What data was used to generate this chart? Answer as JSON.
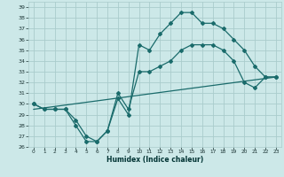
{
  "title": "",
  "xlabel": "Humidex (Indice chaleur)",
  "bg_color": "#cce8e8",
  "grid_color": "#aacccc",
  "line_color": "#1a6b6b",
  "xlim": [
    -0.5,
    23.5
  ],
  "ylim": [
    26,
    39.5
  ],
  "xticks": [
    0,
    1,
    2,
    3,
    4,
    5,
    6,
    7,
    8,
    9,
    10,
    11,
    12,
    13,
    14,
    15,
    16,
    17,
    18,
    19,
    20,
    21,
    22,
    23
  ],
  "yticks": [
    26,
    27,
    28,
    29,
    30,
    31,
    32,
    33,
    34,
    35,
    36,
    37,
    38,
    39
  ],
  "curve1_x": [
    0,
    1,
    2,
    3,
    4,
    5,
    6,
    7,
    8,
    9,
    10,
    11,
    12,
    13,
    14,
    15,
    16,
    17,
    18,
    19,
    20,
    21,
    22,
    23
  ],
  "curve1_y": [
    30.0,
    29.5,
    29.5,
    29.5,
    28.0,
    26.5,
    26.5,
    27.5,
    30.5,
    29.0,
    35.5,
    35.0,
    36.5,
    37.5,
    38.5,
    38.5,
    37.5,
    37.5,
    37.0,
    36.0,
    35.0,
    33.5,
    32.5,
    32.5
  ],
  "curve2_x": [
    0,
    1,
    2,
    3,
    4,
    5,
    6,
    7,
    8,
    9,
    10,
    11,
    12,
    13,
    14,
    15,
    16,
    17,
    18,
    19,
    20,
    21,
    22,
    23
  ],
  "curve2_y": [
    30.0,
    29.5,
    29.5,
    29.5,
    28.5,
    27.0,
    26.5,
    27.5,
    31.0,
    29.5,
    33.0,
    33.0,
    33.5,
    34.0,
    35.0,
    35.5,
    35.5,
    35.5,
    35.0,
    34.0,
    32.0,
    31.5,
    32.5,
    32.5
  ],
  "curve3_x": [
    0,
    23
  ],
  "curve3_y": [
    29.5,
    32.5
  ]
}
